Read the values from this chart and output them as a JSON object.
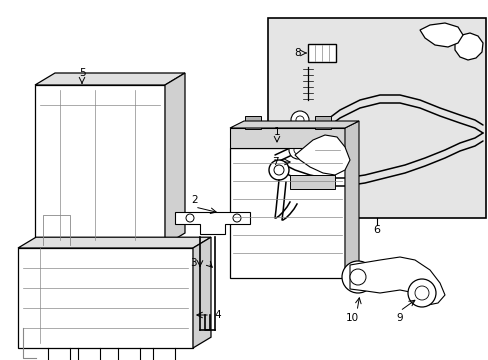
{
  "bg_color": "#ffffff",
  "lc": "#000000",
  "gray": "#888888",
  "lgray": "#cccccc",
  "box6_bg": "#e5e5e5",
  "figsize": [
    4.89,
    3.6
  ],
  "dpi": 100,
  "items": {
    "1_label": "1",
    "2_label": "2",
    "3_label": "3",
    "4_label": "4",
    "5_label": "5",
    "6_label": "6",
    "7_label": "7",
    "8_label": "8",
    "9_label": "9",
    "10_label": "10"
  }
}
